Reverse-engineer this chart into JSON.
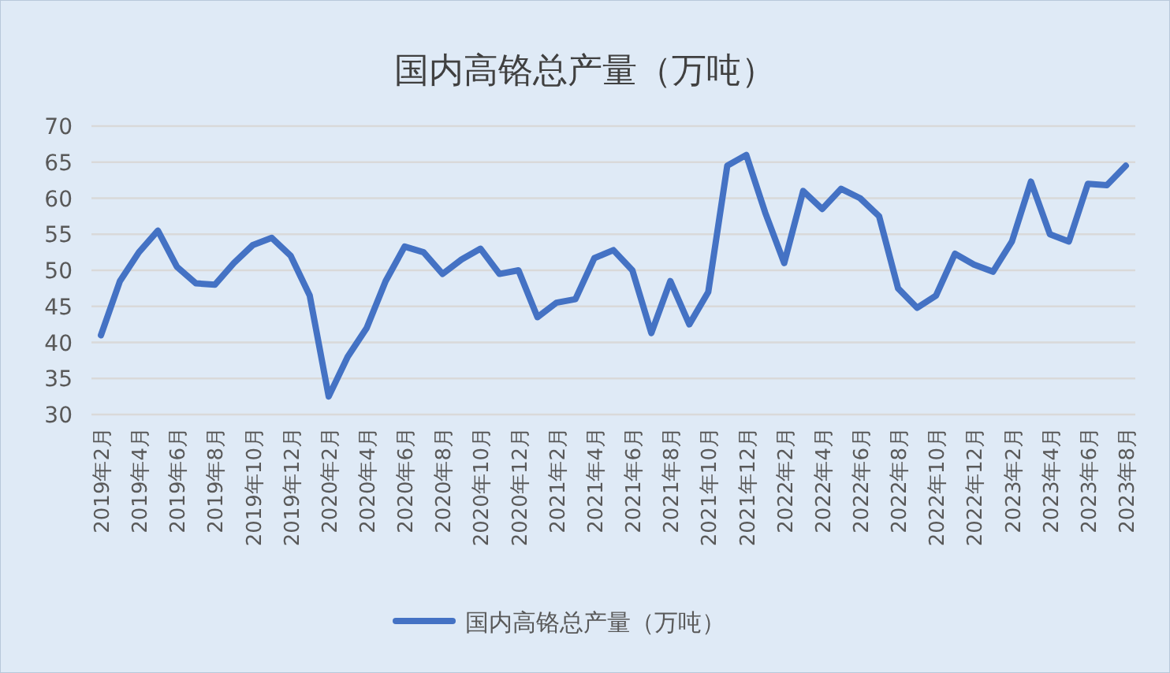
{
  "chart_data": {
    "type": "line",
    "title": "国内高铬总产量（万吨）",
    "categories": [
      "2019年2月",
      null,
      "2019年4月",
      null,
      "2019年6月",
      null,
      "2019年8月",
      null,
      "2019年10月",
      null,
      "2019年12月",
      null,
      "2020年2月",
      null,
      "2020年4月",
      null,
      "2020年6月",
      null,
      "2020年8月",
      null,
      "2020年10月",
      null,
      "2020年12月",
      null,
      "2021年2月",
      null,
      "2021年4月",
      null,
      "2021年6月",
      null,
      "2021年8月",
      null,
      "2021年10月",
      null,
      "2021年12月",
      null,
      "2022年2月",
      null,
      "2022年4月",
      null,
      "2022年6月",
      null,
      "2022年8月",
      null,
      "2022年10月",
      null,
      "2022年12月",
      null,
      "2023年2月",
      null,
      "2023年4月",
      null,
      "2023年6月",
      null,
      "2023年8月"
    ],
    "series": [
      {
        "name": "国内高铬总产量（万吨）",
        "color": "#4472c4",
        "values": [
          41,
          48.5,
          52.5,
          55.5,
          50.5,
          48.2,
          48,
          51,
          53.5,
          54.5,
          52,
          46.5,
          32.5,
          38,
          42,
          48.5,
          53.3,
          52.5,
          49.5,
          51.5,
          53,
          49.5,
          50,
          43.5,
          45.5,
          46,
          51.7,
          52.8,
          50,
          41.3,
          48.5,
          42.5,
          47,
          64.5,
          66,
          58,
          51,
          61,
          58.5,
          61.3,
          60,
          57.5,
          47.5,
          44.8,
          46.5,
          52.3,
          50.8,
          49.8,
          54,
          62.3,
          55,
          54,
          62,
          61.8,
          64.5
        ]
      }
    ],
    "ylim": [
      30,
      70
    ],
    "yticks": [
      30,
      35,
      40,
      45,
      50,
      55,
      60,
      65,
      70
    ],
    "grid": "y",
    "legend": "bottom"
  }
}
